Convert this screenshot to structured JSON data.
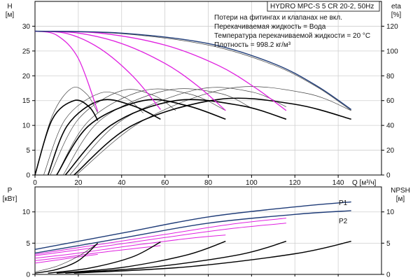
{
  "chart_data": [
    {
      "type": "line",
      "panel": "upper",
      "model_label": "HYDRO MPC-S 5 CR 20-2, 50Hz",
      "notes": [
        "Потери на фитингах и клапанах не вкл.",
        "Перекачиваемая жидкость = Вода",
        "Температура перекачиваемой жидкости = 20 °C",
        "Плотность = 998.2 кг/м³"
      ],
      "xlabel": "Q [м³/ч]",
      "ylabel_left": "H",
      "ylabel_left_unit": "[м]",
      "ylabel_right": "eta",
      "ylabel_right_unit": "[%]",
      "xlim": [
        0,
        160
      ],
      "ylim_left": [
        0,
        35
      ],
      "ylim_right": [
        0,
        140
      ],
      "x_ticks": [
        0,
        20,
        40,
        60,
        80,
        100,
        120,
        140
      ],
      "y_ticks_left": [
        0,
        5,
        10,
        15,
        20,
        25,
        30
      ],
      "y_ticks_right": [
        0,
        20,
        40,
        60,
        80,
        100,
        120
      ],
      "grid": true,
      "colors": {
        "pink": "#e020e0",
        "blue": "#1f3c78",
        "black": "#000000",
        "thin": "#444444"
      },
      "head_curves_pink": [
        {
          "x": [
            0,
            10,
            20,
            29
          ],
          "y": [
            29,
            28.2,
            23.5,
            12.8
          ]
        },
        {
          "x": [
            0,
            15,
            30,
            45,
            58
          ],
          "y": [
            29,
            28.5,
            25.5,
            20,
            13.2
          ]
        },
        {
          "x": [
            0,
            20,
            40,
            60,
            75,
            88
          ],
          "y": [
            29,
            28.6,
            26.5,
            22.5,
            18,
            13
          ]
        },
        {
          "x": [
            0,
            30,
            60,
            85,
            102,
            116
          ],
          "y": [
            29,
            28.6,
            26.2,
            22,
            17.5,
            13
          ]
        }
      ],
      "head_curve_blue": {
        "x": [
          0,
          40,
          80,
          110,
          130,
          146
        ],
        "y": [
          29,
          28.6,
          26.5,
          22.5,
          18,
          13.2
        ]
      },
      "head_curve_thin": {
        "x": [
          0,
          40,
          80,
          110,
          130,
          146
        ],
        "y": [
          29,
          28.5,
          26.2,
          22.2,
          17.8,
          13
        ]
      },
      "eta_curves_bold": [
        {
          "x": [
            0,
            8,
            18,
            25,
            29
          ],
          "y": [
            0,
            45,
            60,
            55,
            44
          ]
        },
        {
          "x": [
            6,
            15,
            30,
            45,
            58
          ],
          "y": [
            0,
            40,
            60,
            56,
            45
          ]
        },
        {
          "x": [
            10,
            25,
            50,
            70,
            88
          ],
          "y": [
            0,
            40,
            60,
            56,
            45
          ]
        },
        {
          "x": [
            14,
            35,
            65,
            95,
            116
          ],
          "y": [
            0,
            40,
            60,
            56,
            45
          ]
        },
        {
          "x": [
            18,
            45,
            85,
            120,
            146
          ],
          "y": [
            0,
            40,
            61,
            57,
            45
          ]
        }
      ],
      "eta_curves_thin": [
        {
          "x": [
            0,
            8,
            17,
            24,
            29
          ],
          "y": [
            0,
            48,
            70,
            65,
            50
          ]
        },
        {
          "x": [
            4,
            14,
            30,
            42,
            50
          ],
          "y": [
            0,
            45,
            66,
            62,
            50
          ]
        },
        {
          "x": [
            7,
            20,
            40,
            55,
            65
          ],
          "y": [
            0,
            45,
            68,
            64,
            52
          ]
        },
        {
          "x": [
            10,
            25,
            50,
            72,
            88
          ],
          "y": [
            0,
            44,
            68,
            65,
            52
          ]
        },
        {
          "x": [
            13,
            30,
            60,
            85,
            100
          ],
          "y": [
            0,
            44,
            68,
            66,
            54
          ]
        },
        {
          "x": [
            16,
            40,
            75,
            100,
            116
          ],
          "y": [
            0,
            44,
            69,
            67,
            55
          ]
        },
        {
          "x": [
            19,
            50,
            90,
            125,
            146
          ],
          "y": [
            0,
            44,
            70,
            66,
            52
          ]
        }
      ]
    },
    {
      "type": "line",
      "panel": "lower",
      "xlabel": "",
      "ylabel_left": "P",
      "ylabel_left_unit": "[кВт]",
      "ylabel_right": "NPSH",
      "ylabel_right_unit": "[м]",
      "xlim": [
        0,
        160
      ],
      "ylim_left": [
        0,
        14
      ],
      "ylim_right": [
        0,
        14
      ],
      "y_ticks_left": [
        0,
        5,
        10
      ],
      "y_ticks_right": [
        0,
        5,
        10
      ],
      "grid": true,
      "series": [
        {
          "name": "P1",
          "color": "#1f3c78",
          "x": [
            0,
            40,
            80,
            120,
            146
          ],
          "y": [
            4,
            6.6,
            9.2,
            10.8,
            11.6
          ]
        },
        {
          "name": "P2",
          "color": "#1f3c78",
          "x": [
            0,
            40,
            80,
            120,
            146
          ],
          "y": [
            3.4,
            5.8,
            8.2,
            9.6,
            10.2
          ]
        }
      ],
      "power_curves_pink": [
        {
          "x": [
            0,
            10,
            20,
            29
          ],
          "y": [
            1.8,
            2.3,
            2.8,
            3.2
          ]
        },
        {
          "x": [
            0,
            15,
            30,
            45,
            58
          ],
          "y": [
            2.2,
            2.8,
            3.5,
            4.1,
            4.6
          ]
        },
        {
          "x": [
            0,
            20,
            40,
            60,
            75,
            88
          ],
          "y": [
            2.6,
            3.4,
            4.4,
            5.3,
            5.9,
            6.3
          ]
        },
        {
          "x": [
            0,
            30,
            60,
            90,
            116
          ],
          "y": [
            3.0,
            4.4,
            5.9,
            7.3,
            8.2
          ]
        },
        {
          "x": [
            0,
            30,
            60,
            90,
            116
          ],
          "y": [
            3.2,
            4.8,
            6.4,
            8.0,
            9.0
          ]
        }
      ],
      "npsh_curves_black": [
        {
          "x": [
            0,
            10,
            20,
            29
          ],
          "y": [
            0.2,
            0.8,
            2.2,
            5.0
          ]
        },
        {
          "x": [
            6,
            25,
            45,
            58
          ],
          "y": [
            0.2,
            1.0,
            2.8,
            5.2
          ]
        },
        {
          "x": [
            10,
            40,
            70,
            88
          ],
          "y": [
            0.2,
            1.1,
            3.1,
            5.3
          ]
        },
        {
          "x": [
            14,
            55,
            95,
            116
          ],
          "y": [
            0.2,
            1.2,
            3.2,
            5.3
          ]
        },
        {
          "x": [
            18,
            70,
            120,
            146
          ],
          "y": [
            0.2,
            1.2,
            3.3,
            5.3
          ]
        }
      ],
      "npsh_curves_thin": [
        {
          "x": [
            0,
            10,
            20,
            29
          ],
          "y": [
            0.4,
            1.3,
            2.9,
            5.0
          ]
        }
      ]
    }
  ]
}
